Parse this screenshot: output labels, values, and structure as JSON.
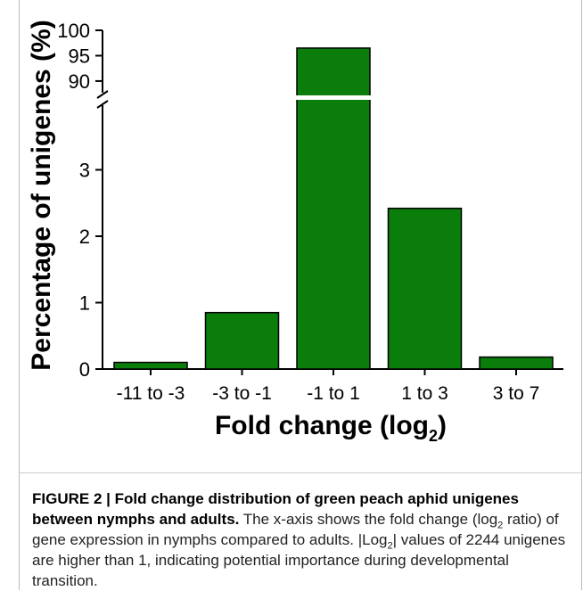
{
  "chart_data": {
    "type": "bar",
    "categories": [
      "-11 to -3",
      "-3 to -1",
      "-1 to 1",
      "1 to 3",
      "3 to 7"
    ],
    "values": [
      0.1,
      0.85,
      96.5,
      2.42,
      0.18
    ],
    "xlabel": "Fold change (log2)",
    "xlabel_main": "Fold change (log",
    "xlabel_sub": "2",
    "xlabel_close": ")",
    "ylabel": "Percentage of unigenes (%)",
    "broken_axis": true,
    "lower_segment": {
      "ylim": [
        0,
        4
      ],
      "ticks": [
        "0",
        "1",
        "2",
        "3"
      ]
    },
    "upper_segment": {
      "ylim": [
        87,
        100
      ],
      "ticks": [
        "90",
        "95",
        "100"
      ]
    },
    "bar_color": "#0b7d0b",
    "grid": false
  },
  "caption": {
    "label": "FIGURE 2 | Fold change distribution of green peach aphid unigenes between nymphs and adults.",
    "text_1": " The x-axis shows the fold change (log",
    "sub_1": "2",
    "text_2": " ratio) of gene expression in nymphs compared to adults. |Log",
    "sub_2": "2",
    "text_3": "| values of 2244 unigenes are higher than 1, indicating potential importance during developmental transition."
  }
}
